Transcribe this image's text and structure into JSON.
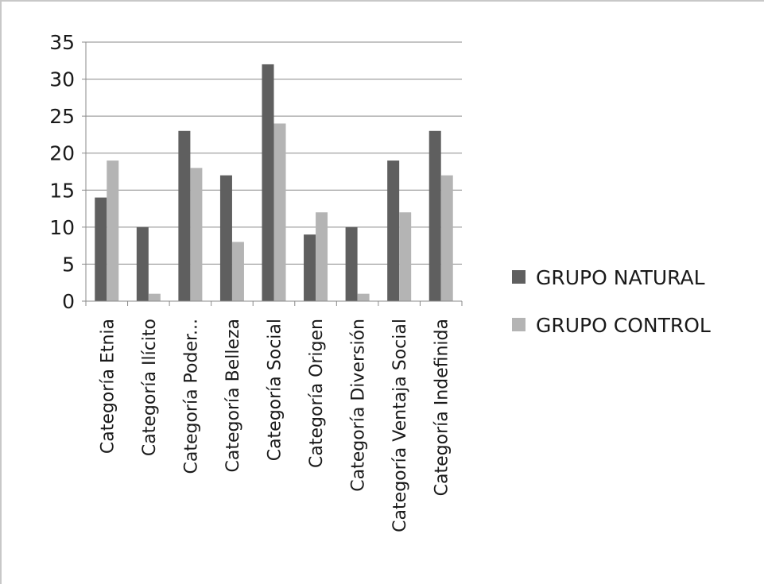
{
  "chart_data": {
    "type": "bar",
    "title": "",
    "xlabel": "",
    "ylabel": "",
    "ylim": [
      0,
      35
    ],
    "yticks": [
      0,
      5,
      10,
      15,
      20,
      25,
      30,
      35
    ],
    "grid": "horizontal",
    "legend_position": "right",
    "categories": [
      "Categoría Etnia",
      "Categoría Ilícito",
      "Categoría Poder...",
      "Categoría Belleza",
      "Categoría Social",
      "Categoría Origen",
      "Categoría Diversión",
      "Categoría Ventaja Social",
      "Categoría Indefinida"
    ],
    "series": [
      {
        "name": "GRUPO NATURAL",
        "color": "#5f5f5f",
        "values": [
          14,
          10,
          23,
          17,
          32,
          9,
          10,
          19,
          23
        ]
      },
      {
        "name": "GRUPO CONTROL",
        "color": "#b4b4b4",
        "values": [
          19,
          1,
          18,
          8,
          24,
          12,
          1,
          12,
          17
        ]
      }
    ]
  }
}
